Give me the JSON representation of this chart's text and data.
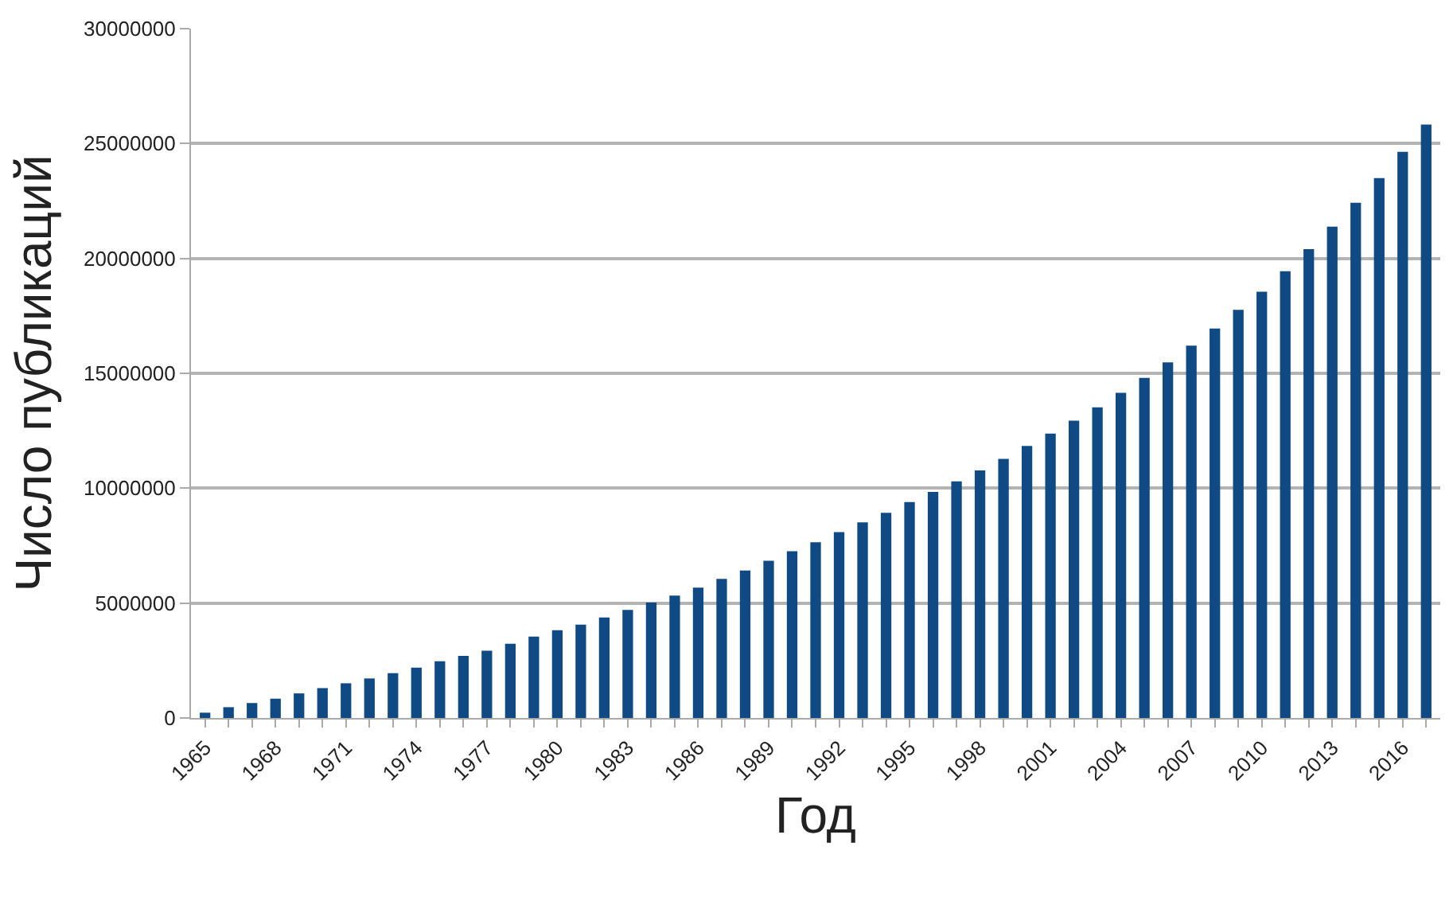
{
  "chart_data": {
    "type": "bar",
    "xlabel": "Год",
    "ylabel": "Число публикаций",
    "categories": [
      "1965",
      null,
      null,
      "1968",
      null,
      null,
      "1971",
      null,
      null,
      "1974",
      null,
      null,
      "1977",
      null,
      null,
      "1980",
      null,
      null,
      "1983",
      null,
      null,
      "1986",
      null,
      null,
      "1989",
      null,
      null,
      "1992",
      null,
      null,
      "1995",
      null,
      null,
      "1998",
      null,
      null,
      "2001",
      null,
      null,
      "2004",
      null,
      null,
      "2007",
      null,
      null,
      "2010",
      null,
      null,
      "2013",
      null,
      null,
      "2016",
      null
    ],
    "values": [
      230000,
      470000,
      650000,
      840000,
      1070000,
      1300000,
      1510000,
      1720000,
      1950000,
      2190000,
      2470000,
      2700000,
      2930000,
      3230000,
      3540000,
      3820000,
      4060000,
      4370000,
      4700000,
      5020000,
      5330000,
      5670000,
      6050000,
      6420000,
      6840000,
      7260000,
      7650000,
      8090000,
      8510000,
      8930000,
      9400000,
      9840000,
      10300000,
      10770000,
      11280000,
      11840000,
      12380000,
      12940000,
      13520000,
      14150000,
      14800000,
      15480000,
      16200000,
      16950000,
      17760000,
      18550000,
      19440000,
      20400000,
      21380000,
      22420000,
      23500000,
      24640000,
      25830000
    ],
    "color": "#0f4a85",
    "ylim": [
      0,
      30000000
    ],
    "yticks": [
      0,
      5000000,
      10000000,
      15000000,
      20000000,
      25000000,
      30000000
    ],
    "grid": "y",
    "legend": false
  }
}
